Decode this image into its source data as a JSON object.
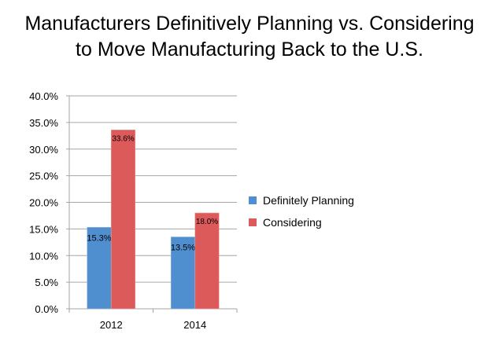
{
  "chart_data": {
    "type": "bar",
    "title": "Manufacturers Definitively Planning vs. Considering to Move Manufacturing Back to the U.S.",
    "title_lines": [
      "Manufacturers Definitively Planning vs. Considering",
      "to Move Manufacturing Back to the U.S."
    ],
    "categories": [
      "2012",
      "2014"
    ],
    "series": [
      {
        "name": "Definitely Planning",
        "values": [
          15.3,
          13.5
        ],
        "labels": [
          "15.3%",
          "13.5%"
        ],
        "color": "#4F8FCF"
      },
      {
        "name": "Considering",
        "values": [
          33.6,
          18.0
        ],
        "labels": [
          "33.6%",
          "18.0%"
        ],
        "color": "#DC5A5A"
      }
    ],
    "ylim": [
      0,
      40
    ],
    "yticks": [
      "0.0%",
      "5.0%",
      "10.0%",
      "15.0%",
      "20.0%",
      "25.0%",
      "30.0%",
      "35.0%",
      "40.0%"
    ],
    "grid": true,
    "legend_position": "right",
    "xlabel": "",
    "ylabel": ""
  }
}
